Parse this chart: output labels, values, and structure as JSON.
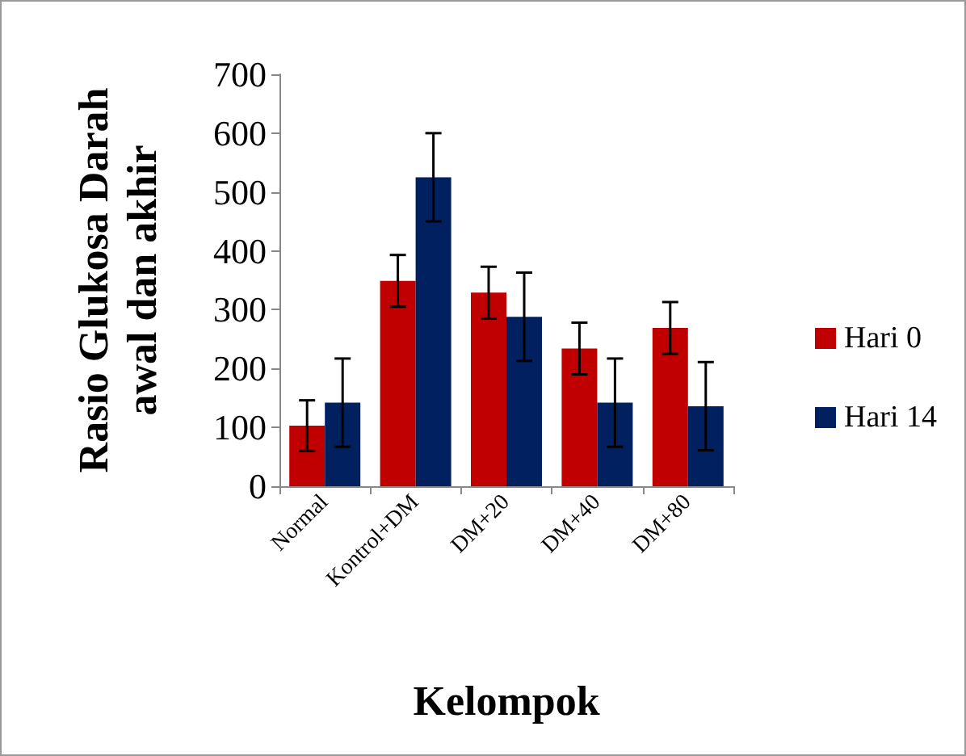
{
  "chart_data": {
    "type": "bar",
    "xlabel": "Kelompok",
    "ylabel": "Rasio Glukosa Darah\nawal dan akhir",
    "categories": [
      "Normal",
      "Kontrol+DM",
      "DM+20",
      "DM+40",
      "DM+80"
    ],
    "series": [
      {
        "name": "Hari 0",
        "color": "#c00000",
        "values": [
          103,
          349,
          329,
          234,
          269
        ],
        "errors": [
          43,
          44,
          44,
          44,
          44
        ]
      },
      {
        "name": "Hari 14",
        "color": "#002060",
        "values": [
          142,
          525,
          288,
          142,
          136
        ],
        "errors": [
          75,
          75,
          75,
          75,
          75
        ]
      }
    ],
    "ylim": [
      0,
      700
    ],
    "yticks": [
      0,
      100,
      200,
      300,
      400,
      500,
      600,
      700
    ],
    "grid": false,
    "legend": "right"
  }
}
